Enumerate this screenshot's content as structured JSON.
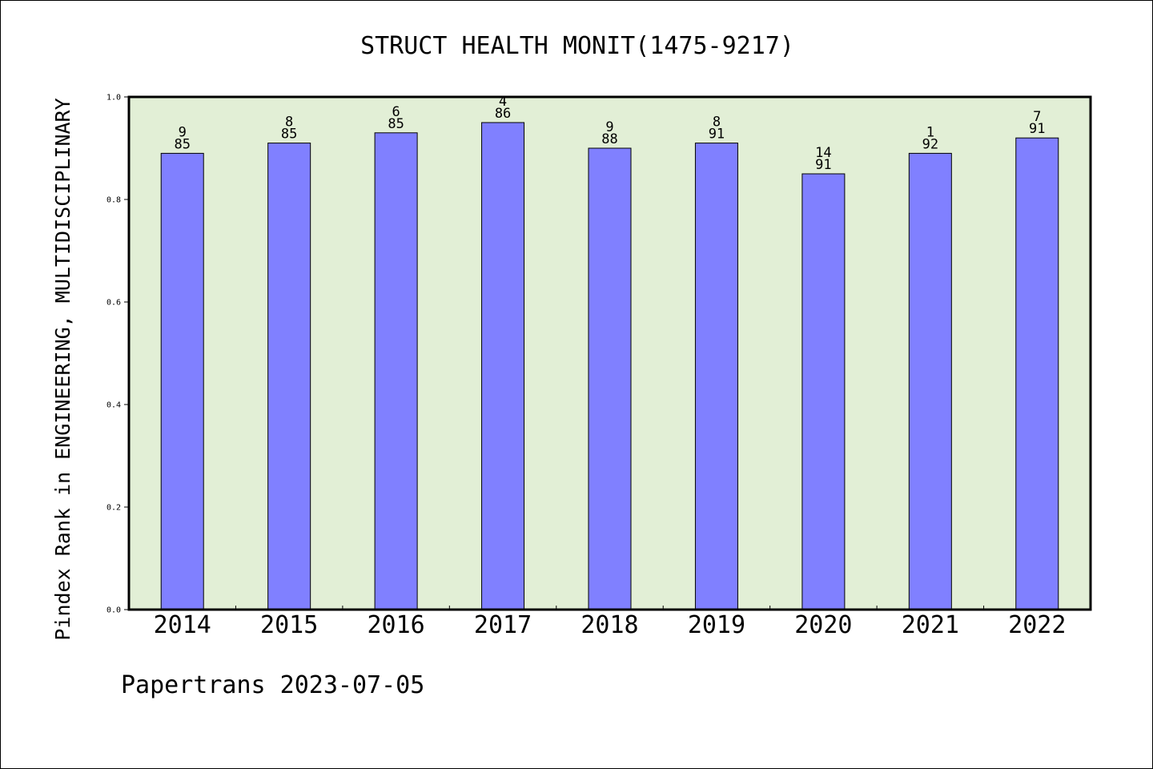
{
  "chart_data": {
    "type": "bar",
    "title": "STRUCT HEALTH MONIT(1475-9217)",
    "xlabel": "",
    "ylabel": "Pindex Rank in ENGINEERING, MULTIDISCIPLINARY",
    "ylim": [
      0,
      1.0
    ],
    "yticks": [
      "0.0",
      "0.2",
      "0.4",
      "0.6",
      "0.8",
      "1.0"
    ],
    "categories": [
      "2014",
      "2015",
      "2016",
      "2017",
      "2018",
      "2019",
      "2020",
      "2021",
      "2022"
    ],
    "values": [
      0.89,
      0.91,
      0.93,
      0.95,
      0.9,
      0.91,
      0.85,
      0.89,
      0.92
    ],
    "labels_top": [
      "9",
      "8",
      "6",
      "4",
      "9",
      "8",
      "14",
      "1",
      "7"
    ],
    "labels_bottom": [
      "85",
      "85",
      "85",
      "86",
      "88",
      "91",
      "91",
      "92",
      "91"
    ],
    "grid": false,
    "colors": {
      "bar": "#8080ff",
      "plot_background": "#e2efd6",
      "axis": "#000000"
    }
  },
  "footer": "Papertrans 2023-07-05"
}
